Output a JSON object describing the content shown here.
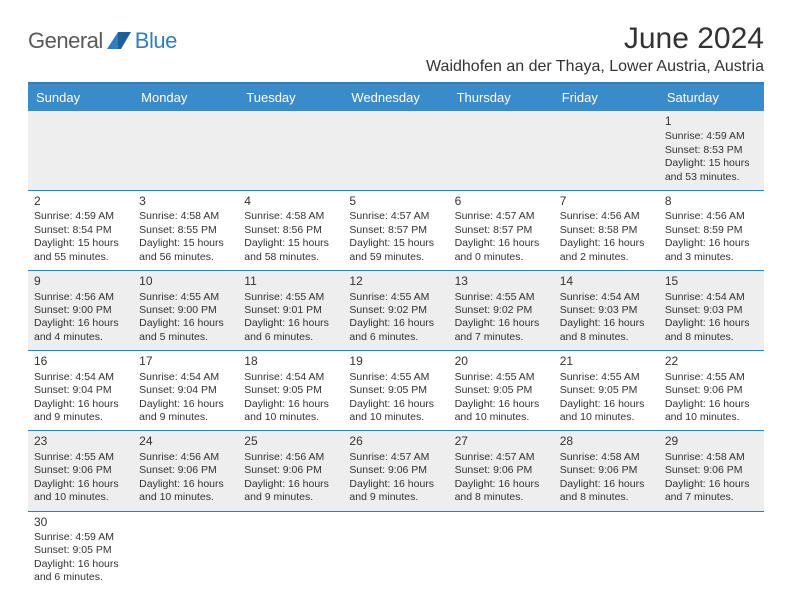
{
  "logo": {
    "text_general": "General",
    "text_blue": "Blue"
  },
  "title": "June 2024",
  "location": "Waidhofen an der Thaya, Lower Austria, Austria",
  "colors": {
    "header_bg": "#3a8bc9",
    "header_border": "#2f7fbf",
    "row_divider": "#2f7fbf",
    "alt_row_bg": "#eeeeee",
    "background": "#ffffff",
    "text": "#333333",
    "logo_gray": "#5a5a5a",
    "logo_blue": "#2f7fbf"
  },
  "weekdays": [
    "Sunday",
    "Monday",
    "Tuesday",
    "Wednesday",
    "Thursday",
    "Friday",
    "Saturday"
  ],
  "weeks": [
    [
      null,
      null,
      null,
      null,
      null,
      null,
      {
        "n": "1",
        "sr": "Sunrise: 4:59 AM",
        "ss": "Sunset: 8:53 PM",
        "dl": "Daylight: 15 hours and 53 minutes."
      }
    ],
    [
      {
        "n": "2",
        "sr": "Sunrise: 4:59 AM",
        "ss": "Sunset: 8:54 PM",
        "dl": "Daylight: 15 hours and 55 minutes."
      },
      {
        "n": "3",
        "sr": "Sunrise: 4:58 AM",
        "ss": "Sunset: 8:55 PM",
        "dl": "Daylight: 15 hours and 56 minutes."
      },
      {
        "n": "4",
        "sr": "Sunrise: 4:58 AM",
        "ss": "Sunset: 8:56 PM",
        "dl": "Daylight: 15 hours and 58 minutes."
      },
      {
        "n": "5",
        "sr": "Sunrise: 4:57 AM",
        "ss": "Sunset: 8:57 PM",
        "dl": "Daylight: 15 hours and 59 minutes."
      },
      {
        "n": "6",
        "sr": "Sunrise: 4:57 AM",
        "ss": "Sunset: 8:57 PM",
        "dl": "Daylight: 16 hours and 0 minutes."
      },
      {
        "n": "7",
        "sr": "Sunrise: 4:56 AM",
        "ss": "Sunset: 8:58 PM",
        "dl": "Daylight: 16 hours and 2 minutes."
      },
      {
        "n": "8",
        "sr": "Sunrise: 4:56 AM",
        "ss": "Sunset: 8:59 PM",
        "dl": "Daylight: 16 hours and 3 minutes."
      }
    ],
    [
      {
        "n": "9",
        "sr": "Sunrise: 4:56 AM",
        "ss": "Sunset: 9:00 PM",
        "dl": "Daylight: 16 hours and 4 minutes."
      },
      {
        "n": "10",
        "sr": "Sunrise: 4:55 AM",
        "ss": "Sunset: 9:00 PM",
        "dl": "Daylight: 16 hours and 5 minutes."
      },
      {
        "n": "11",
        "sr": "Sunrise: 4:55 AM",
        "ss": "Sunset: 9:01 PM",
        "dl": "Daylight: 16 hours and 6 minutes."
      },
      {
        "n": "12",
        "sr": "Sunrise: 4:55 AM",
        "ss": "Sunset: 9:02 PM",
        "dl": "Daylight: 16 hours and 6 minutes."
      },
      {
        "n": "13",
        "sr": "Sunrise: 4:55 AM",
        "ss": "Sunset: 9:02 PM",
        "dl": "Daylight: 16 hours and 7 minutes."
      },
      {
        "n": "14",
        "sr": "Sunrise: 4:54 AM",
        "ss": "Sunset: 9:03 PM",
        "dl": "Daylight: 16 hours and 8 minutes."
      },
      {
        "n": "15",
        "sr": "Sunrise: 4:54 AM",
        "ss": "Sunset: 9:03 PM",
        "dl": "Daylight: 16 hours and 8 minutes."
      }
    ],
    [
      {
        "n": "16",
        "sr": "Sunrise: 4:54 AM",
        "ss": "Sunset: 9:04 PM",
        "dl": "Daylight: 16 hours and 9 minutes."
      },
      {
        "n": "17",
        "sr": "Sunrise: 4:54 AM",
        "ss": "Sunset: 9:04 PM",
        "dl": "Daylight: 16 hours and 9 minutes."
      },
      {
        "n": "18",
        "sr": "Sunrise: 4:54 AM",
        "ss": "Sunset: 9:05 PM",
        "dl": "Daylight: 16 hours and 10 minutes."
      },
      {
        "n": "19",
        "sr": "Sunrise: 4:55 AM",
        "ss": "Sunset: 9:05 PM",
        "dl": "Daylight: 16 hours and 10 minutes."
      },
      {
        "n": "20",
        "sr": "Sunrise: 4:55 AM",
        "ss": "Sunset: 9:05 PM",
        "dl": "Daylight: 16 hours and 10 minutes."
      },
      {
        "n": "21",
        "sr": "Sunrise: 4:55 AM",
        "ss": "Sunset: 9:05 PM",
        "dl": "Daylight: 16 hours and 10 minutes."
      },
      {
        "n": "22",
        "sr": "Sunrise: 4:55 AM",
        "ss": "Sunset: 9:06 PM",
        "dl": "Daylight: 16 hours and 10 minutes."
      }
    ],
    [
      {
        "n": "23",
        "sr": "Sunrise: 4:55 AM",
        "ss": "Sunset: 9:06 PM",
        "dl": "Daylight: 16 hours and 10 minutes."
      },
      {
        "n": "24",
        "sr": "Sunrise: 4:56 AM",
        "ss": "Sunset: 9:06 PM",
        "dl": "Daylight: 16 hours and 10 minutes."
      },
      {
        "n": "25",
        "sr": "Sunrise: 4:56 AM",
        "ss": "Sunset: 9:06 PM",
        "dl": "Daylight: 16 hours and 9 minutes."
      },
      {
        "n": "26",
        "sr": "Sunrise: 4:57 AM",
        "ss": "Sunset: 9:06 PM",
        "dl": "Daylight: 16 hours and 9 minutes."
      },
      {
        "n": "27",
        "sr": "Sunrise: 4:57 AM",
        "ss": "Sunset: 9:06 PM",
        "dl": "Daylight: 16 hours and 8 minutes."
      },
      {
        "n": "28",
        "sr": "Sunrise: 4:58 AM",
        "ss": "Sunset: 9:06 PM",
        "dl": "Daylight: 16 hours and 8 minutes."
      },
      {
        "n": "29",
        "sr": "Sunrise: 4:58 AM",
        "ss": "Sunset: 9:06 PM",
        "dl": "Daylight: 16 hours and 7 minutes."
      }
    ],
    [
      {
        "n": "30",
        "sr": "Sunrise: 4:59 AM",
        "ss": "Sunset: 9:05 PM",
        "dl": "Daylight: 16 hours and 6 minutes."
      },
      null,
      null,
      null,
      null,
      null,
      null
    ]
  ]
}
